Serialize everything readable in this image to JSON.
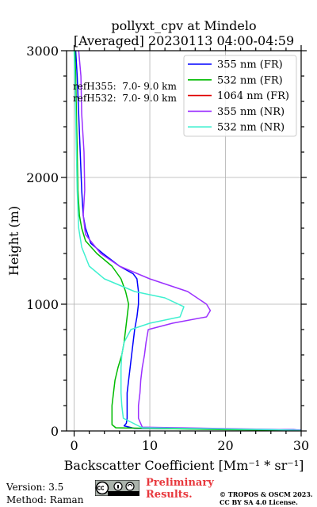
{
  "chart_data": {
    "type": "line",
    "title": [
      "pollyxt_cpv at Mindelo",
      "[Averaged] 20230113 04:00-04:59"
    ],
    "xlabel": "Backscatter Coefficient [Mm⁻¹ * sr⁻¹]",
    "ylabel": "Height (m)",
    "xlim": [
      -1,
      30
    ],
    "ylim": [
      0,
      3000
    ],
    "xticks": [
      0,
      10,
      20,
      30
    ],
    "yticks": [
      0,
      1000,
      2000,
      3000
    ],
    "grid": true,
    "legend_position": "top-right",
    "annotations": [
      "refH355:  7.0- 9.0 km",
      "refH532:  7.0- 9.0 km"
    ],
    "series": [
      {
        "name": "355 nm (FR)",
        "color": "#0000ff",
        "x": [
          0.2,
          0.4,
          0.6,
          0.8,
          1.0,
          1.2,
          1.5,
          2.2,
          3.8,
          6.0,
          7.8,
          8.3,
          8.5,
          8.5,
          8.3,
          8.0,
          7.8,
          7.6,
          7.4,
          7.2,
          7.0,
          7.0,
          7.0,
          6.9,
          6.6,
          8.0,
          29.0,
          30.0
        ],
        "y": [
          3000,
          2800,
          2500,
          2200,
          1900,
          1700,
          1600,
          1480,
          1400,
          1300,
          1240,
          1200,
          1100,
          1000,
          900,
          800,
          700,
          600,
          500,
          400,
          300,
          200,
          100,
          60,
          40,
          20,
          10,
          5
        ]
      },
      {
        "name": "532 nm (FR)",
        "color": "#00bb00",
        "x": [
          0.1,
          0.2,
          0.3,
          0.4,
          0.5,
          0.7,
          1.0,
          1.5,
          3.0,
          5.0,
          6.2,
          6.8,
          7.2,
          7.0,
          6.8,
          6.6,
          6.3,
          5.8,
          5.4,
          5.2,
          5.0,
          5.0,
          5.0,
          5.0,
          5.5,
          20.0,
          30.0
        ],
        "y": [
          3000,
          2800,
          2500,
          2200,
          1900,
          1700,
          1600,
          1500,
          1400,
          1300,
          1200,
          1100,
          1000,
          900,
          800,
          700,
          600,
          500,
          400,
          300,
          200,
          100,
          80,
          50,
          25,
          10,
          5
        ]
      },
      {
        "name": "1064 nm (FR)",
        "color": "#e00000",
        "x": [],
        "y": []
      },
      {
        "name": "355 nm (NR)",
        "color": "#9b30ff",
        "x": [
          0.6,
          0.9,
          1.0,
          1.3,
          1.4,
          1.2,
          1.5,
          3.5,
          6.0,
          10.0,
          15.0,
          17.5,
          18.0,
          17.5,
          13.0,
          9.8,
          9.5,
          9.3,
          9.0,
          8.8,
          8.7,
          8.5,
          8.5,
          9.0,
          30.0
        ],
        "y": [
          3000,
          2800,
          2500,
          2200,
          1900,
          1700,
          1550,
          1400,
          1300,
          1200,
          1100,
          1000,
          950,
          900,
          850,
          800,
          700,
          600,
          500,
          400,
          300,
          200,
          100,
          30,
          8
        ]
      },
      {
        "name": "532 nm (NR)",
        "color": "#40f0d0",
        "x": [
          0.0,
          0.1,
          0.2,
          0.3,
          0.4,
          0.6,
          1.0,
          2.0,
          4.0,
          8.0,
          12.0,
          14.5,
          14.0,
          10.0,
          7.5,
          6.6,
          6.3,
          6.2,
          6.2,
          6.2,
          6.3,
          6.5,
          9.0,
          26.0,
          30.0
        ],
        "y": [
          3000,
          2800,
          2500,
          2200,
          1900,
          1600,
          1450,
          1300,
          1200,
          1100,
          1050,
          980,
          900,
          850,
          800,
          700,
          600,
          500,
          400,
          300,
          200,
          100,
          25,
          10,
          5
        ]
      }
    ]
  },
  "footer": {
    "version": "Version: 3.5",
    "method": "Method: Raman",
    "preliminary": [
      "Preliminary",
      "Results."
    ],
    "copyright": [
      "© TROPOS & OSCM 2023.",
      "CC BY SA 4.0 License."
    ]
  }
}
